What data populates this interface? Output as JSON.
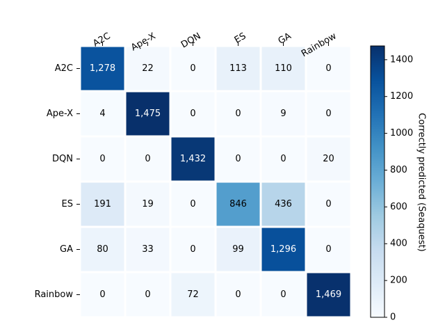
{
  "chart_data": {
    "type": "heatmap",
    "x_categories": [
      "A2C",
      "Ape-X",
      "DQN",
      "ES",
      "GA",
      "Rainbow"
    ],
    "y_categories": [
      "A2C",
      "Ape-X",
      "DQN",
      "ES",
      "GA",
      "Rainbow"
    ],
    "values": [
      [
        1278,
        22,
        0,
        113,
        110,
        0
      ],
      [
        4,
        1475,
        0,
        0,
        9,
        0
      ],
      [
        0,
        0,
        1432,
        0,
        0,
        20
      ],
      [
        191,
        19,
        0,
        846,
        436,
        0
      ],
      [
        80,
        33,
        0,
        99,
        1296,
        0
      ],
      [
        0,
        0,
        72,
        0,
        0,
        1469
      ]
    ],
    "x_tick_position": "top",
    "colormap": "Blues",
    "colorbar": {
      "label": "Correctly predicted (Seaquest)",
      "range": [
        0,
        1475
      ],
      "ticks": [
        0,
        200,
        400,
        600,
        800,
        1000,
        1200,
        1400
      ]
    }
  }
}
